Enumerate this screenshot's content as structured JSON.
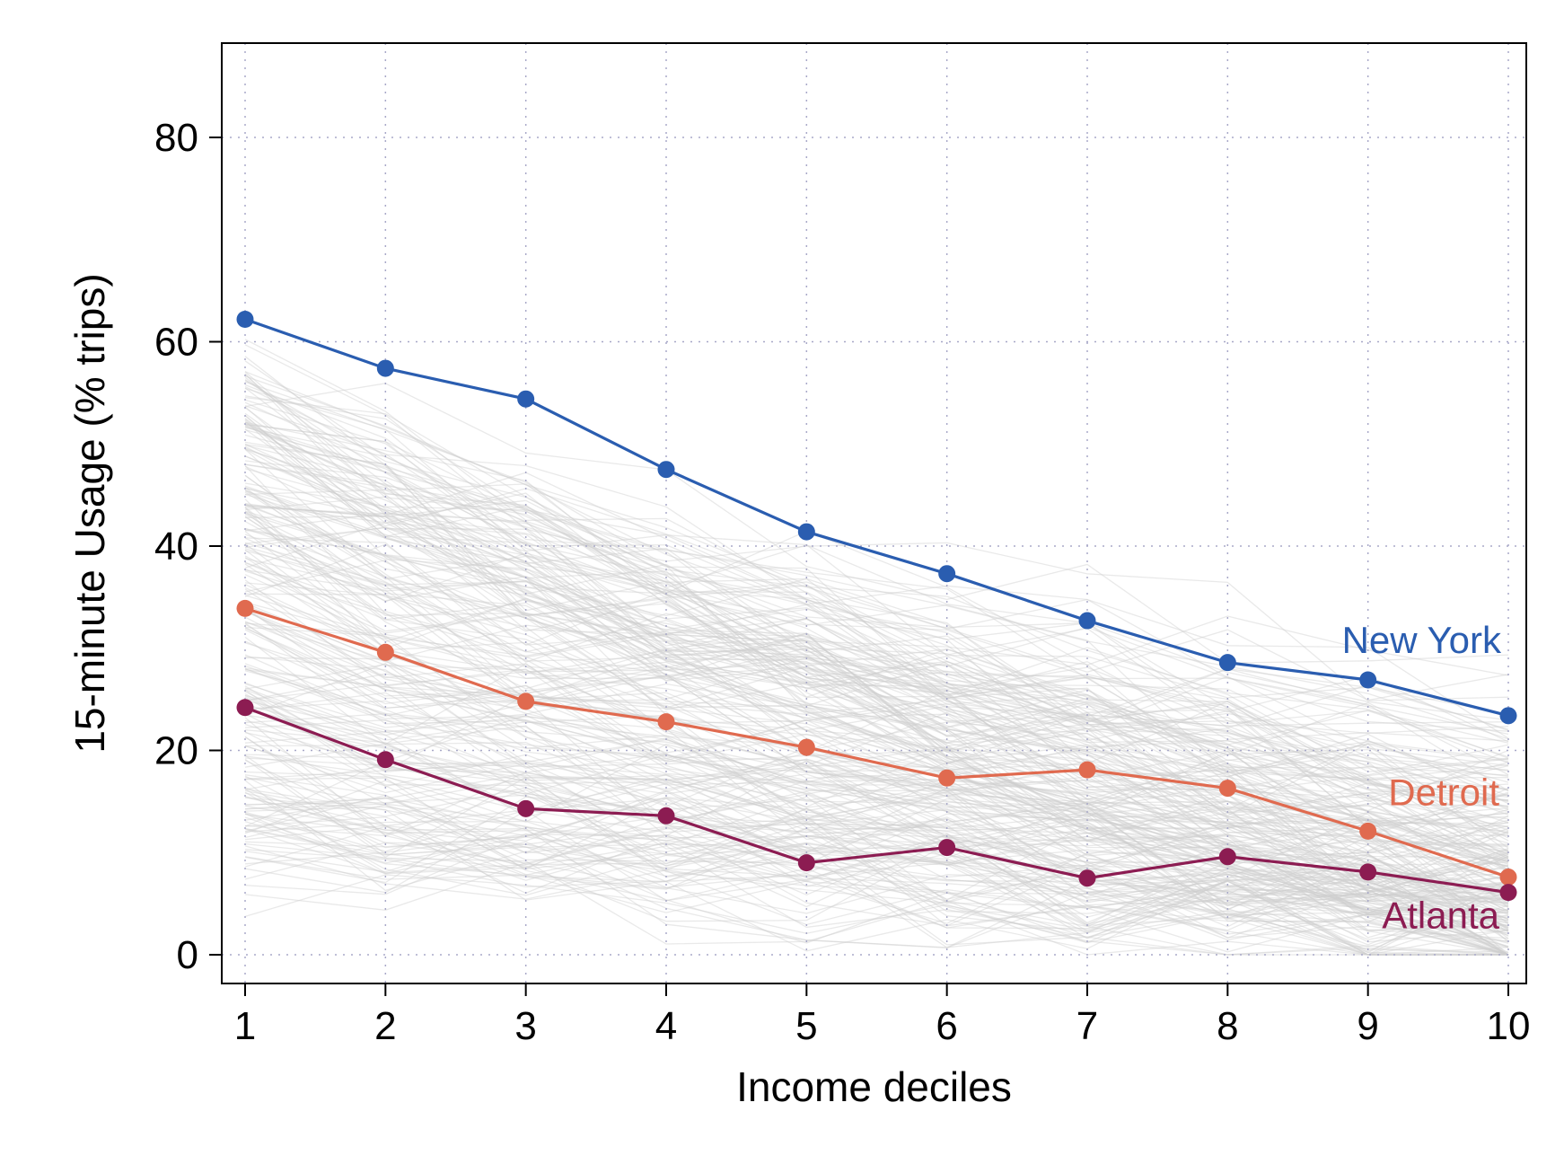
{
  "chart_data": {
    "type": "line",
    "xlabel": "Income deciles",
    "ylabel": "15-minute Usage (% trips)",
    "x": [
      1,
      2,
      3,
      4,
      5,
      6,
      7,
      8,
      9,
      10
    ],
    "xlim": [
      0.83,
      10.17
    ],
    "ylim": [
      -2.3,
      88.7
    ],
    "yticks": [
      0,
      20,
      40,
      60,
      80
    ],
    "grid": true,
    "legend": "none (series labeled directly on the plot)",
    "background_lines": "many faint gray lines for other cities",
    "series": [
      {
        "name": "New York",
        "color": "#2a5db0",
        "values": [
          62.2,
          57.4,
          54.4,
          47.5,
          41.4,
          37.3,
          32.7,
          28.6,
          26.9,
          23.4
        ]
      },
      {
        "name": "Detroit",
        "color": "#e06a4f",
        "values": [
          33.9,
          29.6,
          24.8,
          22.8,
          20.3,
          17.3,
          18.1,
          16.3,
          12.1,
          7.6
        ]
      },
      {
        "name": "Atlanta",
        "color": "#8c1c52",
        "values": [
          24.2,
          19.1,
          14.3,
          13.6,
          9.0,
          10.5,
          7.5,
          9.6,
          8.1,
          6.1
        ]
      }
    ]
  }
}
